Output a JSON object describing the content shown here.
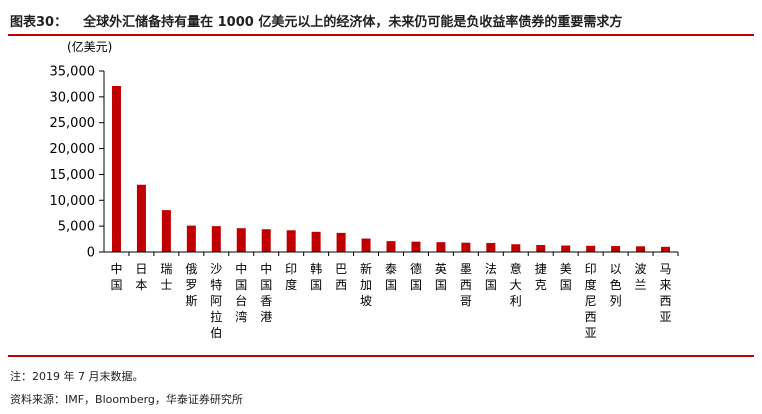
{
  "header": {
    "figure_label": "图表30：",
    "title": "全球外汇储备持有量在 1000 亿美元以上的经济体，未来仍可能是负收益率债券的重要需求方"
  },
  "footer": {
    "note": "注：2019 年 7 月末数据。",
    "source": "资料来源：IMF，Bloomberg，华泰证券研究所"
  },
  "colors": {
    "accent": "#c00000",
    "bar": "#c00000"
  },
  "chart_data": {
    "type": "bar",
    "title": "",
    "xlabel": "",
    "ylabel": "(亿美元)",
    "ylim": [
      0,
      35000
    ],
    "yticks": [
      "0",
      "5,000",
      "10,000",
      "15,000",
      "20,000",
      "25,000",
      "30,000",
      "35,000"
    ],
    "grid": false,
    "categories": [
      "中国",
      "日本",
      "瑞士",
      "俄罗斯",
      "沙特阿拉伯",
      "中国台湾",
      "中国香港",
      "印度",
      "韩国",
      "巴西",
      "新加坡",
      "泰国",
      "德国",
      "英国",
      "墨西哥",
      "法国",
      "意大利",
      "捷克",
      "美国",
      "印度尼西亚",
      "以色列",
      "波兰",
      "马来西亚"
    ],
    "values": [
      32100,
      13000,
      8100,
      5100,
      5000,
      4600,
      4400,
      4200,
      3900,
      3700,
      2600,
      2100,
      2000,
      1900,
      1800,
      1750,
      1500,
      1350,
      1250,
      1200,
      1150,
      1100,
      1000
    ]
  }
}
